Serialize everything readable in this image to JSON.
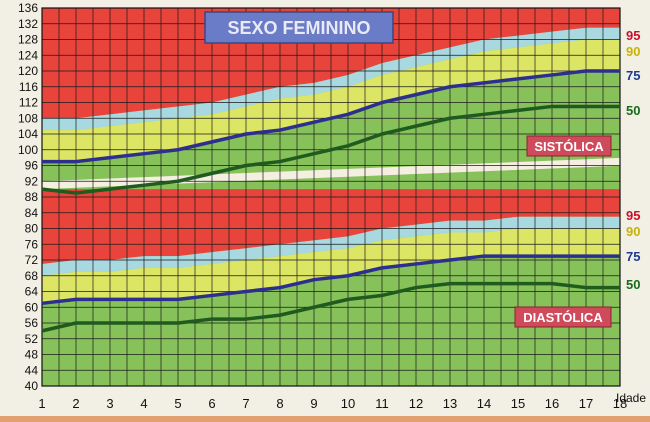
{
  "chart_data": {
    "type": "area",
    "title": "SEXO FEMININO",
    "xlabel": "Idade",
    "x_ticks": [
      "1",
      "2",
      "3",
      "4",
      "5",
      "6",
      "7",
      "8",
      "9",
      "10",
      "11",
      "12",
      "13",
      "14",
      "15",
      "16",
      "17",
      "18"
    ],
    "y_ticks": [
      "40",
      "44",
      "48",
      "52",
      "56",
      "60",
      "64",
      "68",
      "72",
      "76",
      "80",
      "84",
      "88",
      "92",
      "96",
      "100",
      "104",
      "108",
      "112",
      "116",
      "120",
      "124",
      "128",
      "132",
      "136"
    ],
    "xlim": [
      1,
      18
    ],
    "ylim": [
      40,
      136
    ],
    "grid": true,
    "panels": [
      {
        "label": "SISTÓLICA",
        "x": [
          1,
          2,
          3,
          4,
          5,
          6,
          7,
          8,
          9,
          10,
          11,
          12,
          13,
          14,
          15,
          16,
          17,
          18
        ],
        "band_top": 136,
        "series": [
          {
            "name": "95",
            "color": "#1e4fa0",
            "values": [
              108,
              108,
              109,
              110,
              111,
              112,
              114,
              116,
              117,
              119,
              122,
              124,
              126,
              128,
              129,
              130,
              131,
              131
            ]
          },
          {
            "name": "90",
            "color": "#d4c21a",
            "values": [
              105,
              105,
              106,
              107,
              108,
              109,
              111,
              113,
              114,
              116,
              119,
              121,
              123,
              125,
              126,
              127,
              128,
              128
            ]
          },
          {
            "name": "75",
            "color": "#2d2f8f",
            "values": [
              97,
              97,
              98,
              99,
              100,
              102,
              104,
              105,
              107,
              109,
              112,
              114,
              116,
              117,
              118,
              119,
              120,
              120
            ]
          },
          {
            "name": "50",
            "color": "#1f5a1f",
            "values": [
              90,
              89,
              90,
              91,
              92,
              94,
              96,
              97,
              99,
              101,
              104,
              106,
              108,
              109,
              110,
              111,
              111,
              111
            ]
          }
        ],
        "series_values_label": [
          "95",
          "90",
          "75",
          "50"
        ]
      },
      {
        "label": "DIASTÓLICA",
        "x": [
          1,
          2,
          3,
          4,
          5,
          6,
          7,
          8,
          9,
          10,
          11,
          12,
          13,
          14,
          15,
          16,
          17,
          18
        ],
        "band_top": 90,
        "series": [
          {
            "name": "95",
            "color": "#1e4fa0",
            "values": [
              71,
              72,
              72,
              73,
              73,
              74,
              75,
              76,
              77,
              78,
              80,
              81,
              82,
              82,
              83,
              83,
              83,
              83
            ]
          },
          {
            "name": "90",
            "color": "#d4c21a",
            "values": [
              68,
              69,
              69,
              70,
              70,
              71,
              72,
              73,
              74,
              75,
              77,
              78,
              79,
              79,
              80,
              80,
              80,
              80
            ]
          },
          {
            "name": "75",
            "color": "#2d2f8f",
            "values": [
              61,
              62,
              62,
              62,
              62,
              63,
              64,
              65,
              67,
              68,
              70,
              71,
              72,
              73,
              73,
              73,
              73,
              73
            ]
          },
          {
            "name": "50",
            "color": "#1f5a1f",
            "values": [
              54,
              56,
              56,
              56,
              56,
              57,
              57,
              58,
              60,
              62,
              63,
              65,
              66,
              66,
              66,
              66,
              65,
              65
            ]
          }
        ]
      }
    ],
    "colors": {
      "above_95": "#e8443c",
      "p90_p95": "#a8d8e0",
      "p75_p90": "#dde565",
      "below_75": "#86c15a",
      "percentile_95_label": "#c8102e",
      "percentile_90_label": "#c8b400",
      "percentile_75_label": "#1f3a93",
      "percentile_50_label": "#1a6b1a",
      "gap": "#f4efe0"
    }
  }
}
